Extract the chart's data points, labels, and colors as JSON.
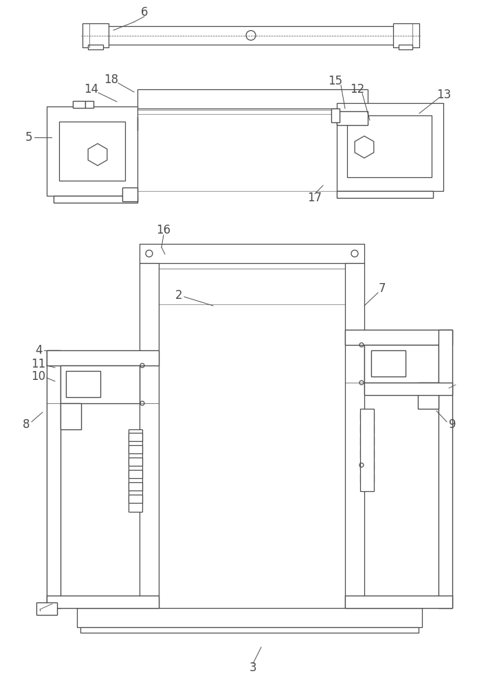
{
  "bg_color": "#ffffff",
  "line_color": "#4a4a4a",
  "lw": 0.9,
  "hatch_lw": 0.4,
  "fig_width": 7.26,
  "fig_height": 10.0
}
